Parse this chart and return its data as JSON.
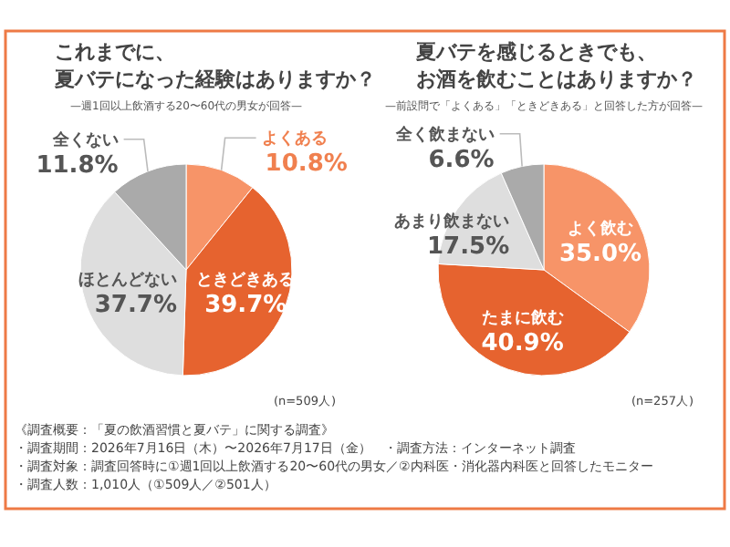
{
  "chart_data": [
    {
      "type": "pie",
      "title": "これまでに、夏バテになった経験はありますか？",
      "subtitle": "—週1回以上飲酒する20〜60代の男女が回答—",
      "categories": [
        "よくある",
        "ときどきある",
        "ほとんどない",
        "全くない"
      ],
      "values": [
        10.8,
        39.7,
        37.7,
        11.8
      ],
      "value_labels": [
        "10.8%",
        "39.7%",
        "37.7%",
        "11.8%"
      ],
      "colors": [
        "#f79468",
        "#e6632f",
        "#dedede",
        "#aaaaaa"
      ],
      "annotations": [
        "(n=509人)"
      ]
    },
    {
      "type": "pie",
      "title": "夏バテを感じるときでも、お酒を飲むことはありますか？",
      "subtitle": "—前設問で「よくある」「ときどきある」と回答した方が回答—",
      "categories": [
        "よく飲む",
        "たまに飲む",
        "あまり飲まない",
        "全く飲まない"
      ],
      "values": [
        35.0,
        40.9,
        17.5,
        6.6
      ],
      "value_labels": [
        "35.0%",
        "40.9%",
        "17.5%",
        "6.6%"
      ],
      "colors": [
        "#f79468",
        "#e6632f",
        "#dedede",
        "#aaaaaa"
      ],
      "annotations": [
        "(n=257人)"
      ]
    },
    {
      "type": "other",
      "annotations": [
        "《調査概要：「夏の飲酒習慣と夏バテ」に関する調査》",
        "・調査期間：2026年7月16日（木）〜2026年7月17日（金）　・調査方法：インターネット調査",
        "・調査対象：調査回答時に①週1回以上飲酒する20〜60代の男女／②内科医・消化器内科医と回答したモニター",
        "・調査人数：1,010人（①509人／②501人）"
      ]
    }
  ]
}
